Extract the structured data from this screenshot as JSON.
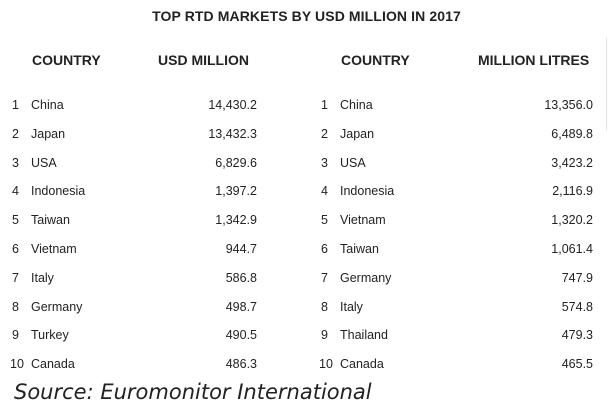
{
  "title": "TOP RTD MARKETS BY USD MILLION IN 2017",
  "left_table": {
    "headers": {
      "country": "COUNTRY",
      "value": "USD MILLION"
    },
    "rows": [
      {
        "rank": "1",
        "country": "China",
        "value": "14,430.2"
      },
      {
        "rank": "2",
        "country": "Japan",
        "value": "13,432.3"
      },
      {
        "rank": "3",
        "country": "USA",
        "value": "6,829.6"
      },
      {
        "rank": "4",
        "country": "Indonesia",
        "value": "1,397.2"
      },
      {
        "rank": "5",
        "country": "Taiwan",
        "value": "1,342.9"
      },
      {
        "rank": "6",
        "country": "Vietnam",
        "value": "944.7"
      },
      {
        "rank": "7",
        "country": "Italy",
        "value": "586.8"
      },
      {
        "rank": "8",
        "country": "Germany",
        "value": "498.7"
      },
      {
        "rank": "9",
        "country": "Turkey",
        "value": "490.5"
      },
      {
        "rank": "10",
        "country": "Canada",
        "value": "486.3"
      }
    ]
  },
  "right_table": {
    "headers": {
      "country": "COUNTRY",
      "value": "MILLION LITRES"
    },
    "rows": [
      {
        "rank": "1",
        "country": "China",
        "value": "13,356.0"
      },
      {
        "rank": "2",
        "country": "Japan",
        "value": "6,489.8"
      },
      {
        "rank": "3",
        "country": "USA",
        "value": "3,423.2"
      },
      {
        "rank": "4",
        "country": "Indonesia",
        "value": "2,116.9"
      },
      {
        "rank": "5",
        "country": "Vietnam",
        "value": "1,320.2"
      },
      {
        "rank": "6",
        "country": "Taiwan",
        "value": "1,061.4"
      },
      {
        "rank": "7",
        "country": "Germany",
        "value": "747.9"
      },
      {
        "rank": "8",
        "country": "Italy",
        "value": "574.8"
      },
      {
        "rank": "9",
        "country": "Thailand",
        "value": "479.3"
      },
      {
        "rank": "10",
        "country": "Canada",
        "value": "465.5"
      }
    ]
  },
  "source": "Source: Euromonitor International"
}
